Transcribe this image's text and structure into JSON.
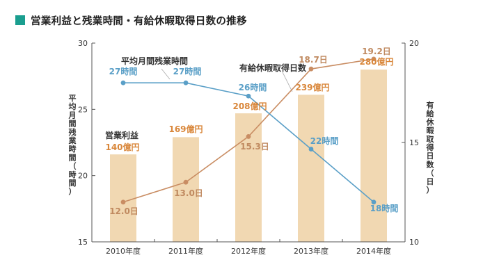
{
  "page": {
    "title": "営業利益と残業時間・有給休暇取得日数の推移",
    "accent_color": "#1a9e8f"
  },
  "chart_data": {
    "type": "bar+line",
    "categories": [
      "2010年度",
      "2011年度",
      "2012年度",
      "2013年度",
      "2014年度"
    ],
    "left_axis": {
      "label": "平均月間残業時間（時間）",
      "range": [
        15,
        30
      ],
      "ticks": [
        "15",
        "20",
        "25",
        "30"
      ]
    },
    "right_axis": {
      "label": "有給休暇取得日数（日）",
      "range": [
        10,
        20
      ],
      "ticks": [
        "10",
        "15",
        "20"
      ]
    },
    "grid": false,
    "series": [
      {
        "name": "営業利益",
        "type": "bar",
        "axis": "left",
        "color": "#f1d8b2",
        "label_color": "#d9873b",
        "bar_heights_left_axis": [
          21.6,
          22.9,
          24.7,
          26.1,
          28.0
        ],
        "data_labels": [
          "140億円",
          "169億円",
          "208億円",
          "239億円",
          "280億円"
        ]
      },
      {
        "name": "平均月間残業時間",
        "type": "line",
        "axis": "left",
        "color": "#5a9fc7",
        "values": [
          27,
          27,
          26,
          22,
          18
        ],
        "data_labels": [
          "27時間",
          "27時間",
          "26時間",
          "22時間",
          "18時間"
        ]
      },
      {
        "name": "有給休暇取得日数",
        "type": "line",
        "axis": "right",
        "color": "#c98d63",
        "label_color": "#c08a60",
        "values": [
          12.0,
          13.0,
          15.3,
          18.7,
          19.2
        ],
        "data_labels": [
          "12.0日",
          "13.0日",
          "15.3日",
          "18.7日",
          "19.2日"
        ]
      }
    ]
  }
}
